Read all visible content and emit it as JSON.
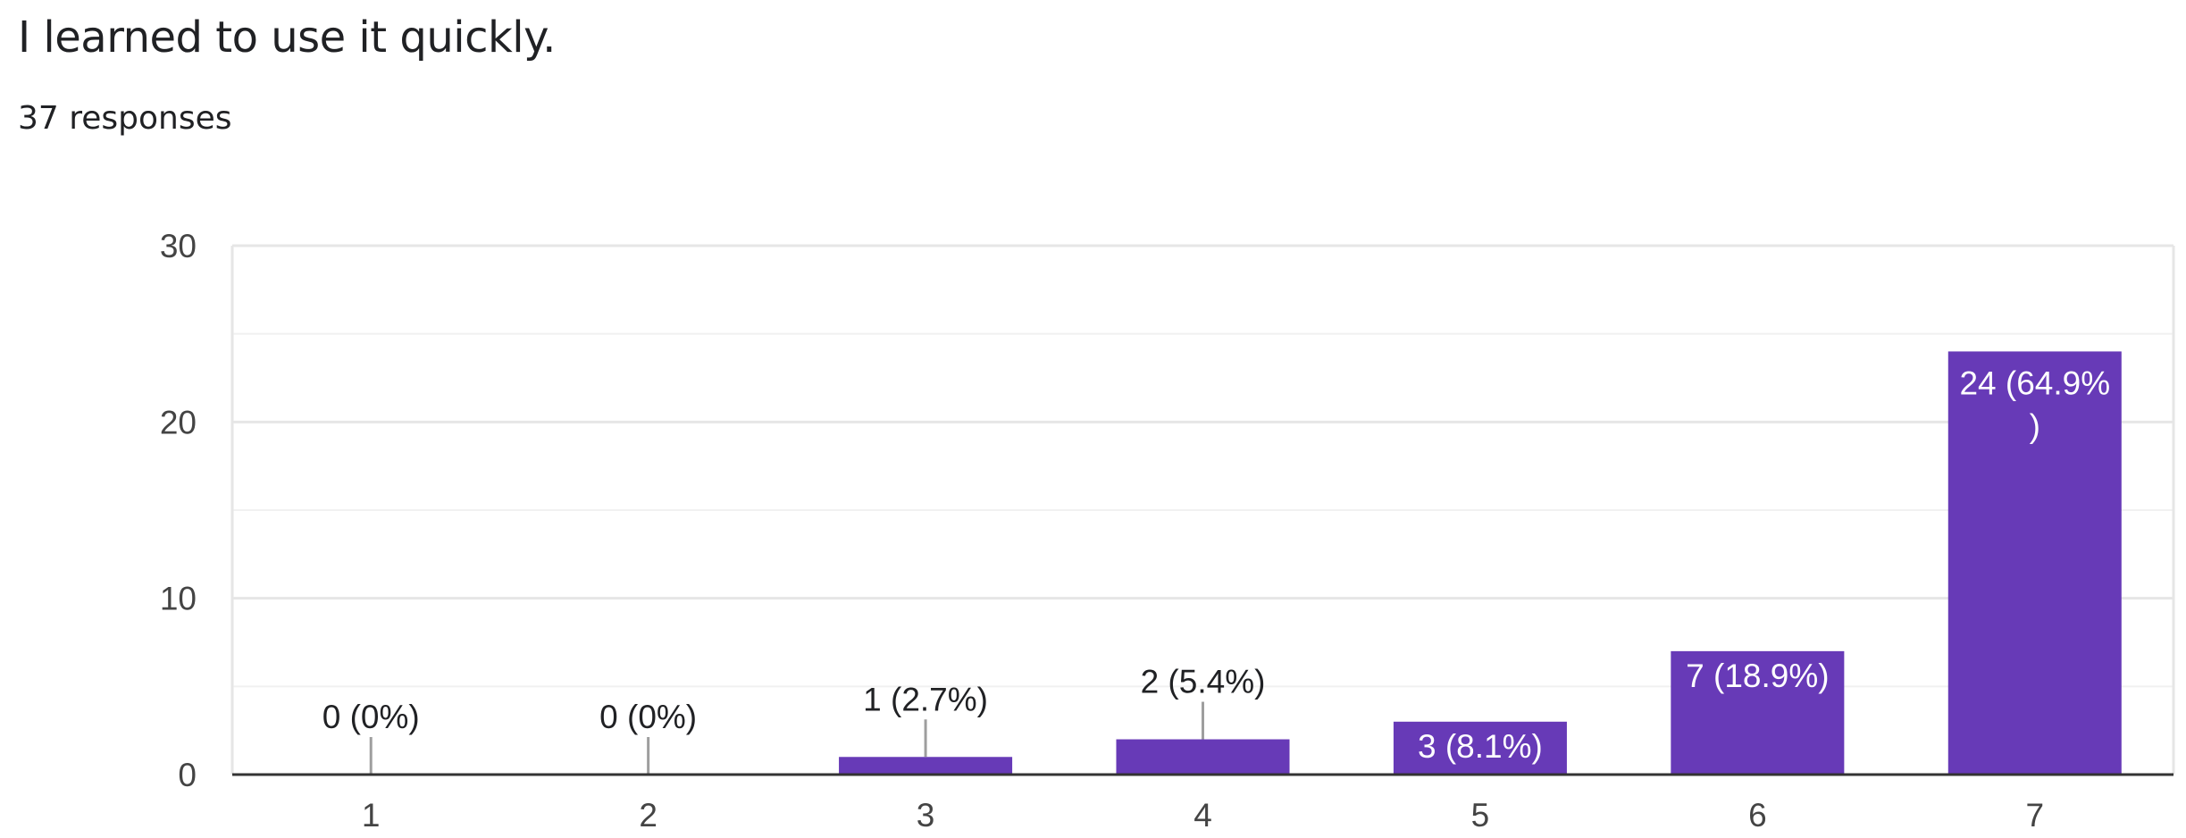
{
  "question": {
    "title": "I learned to use it quickly.",
    "responses": "37 responses"
  },
  "chart_data": {
    "type": "bar",
    "title": "",
    "xlabel": "",
    "ylabel": "",
    "categories": [
      "1",
      "2",
      "3",
      "4",
      "5",
      "6",
      "7"
    ],
    "values": [
      0,
      0,
      1,
      2,
      3,
      7,
      24
    ],
    "data_labels": [
      "0 (0%)",
      "0 (0%)",
      "1 (2.7%)",
      "2 (5.4%)",
      "3 (8.1%)",
      "7 (18.9%)",
      "24 (64.9%)"
    ],
    "ylim": [
      0,
      30
    ],
    "yticks": [
      0,
      10,
      20,
      30
    ],
    "grid": true,
    "legend": "none",
    "bar_color": "#673ab7"
  }
}
